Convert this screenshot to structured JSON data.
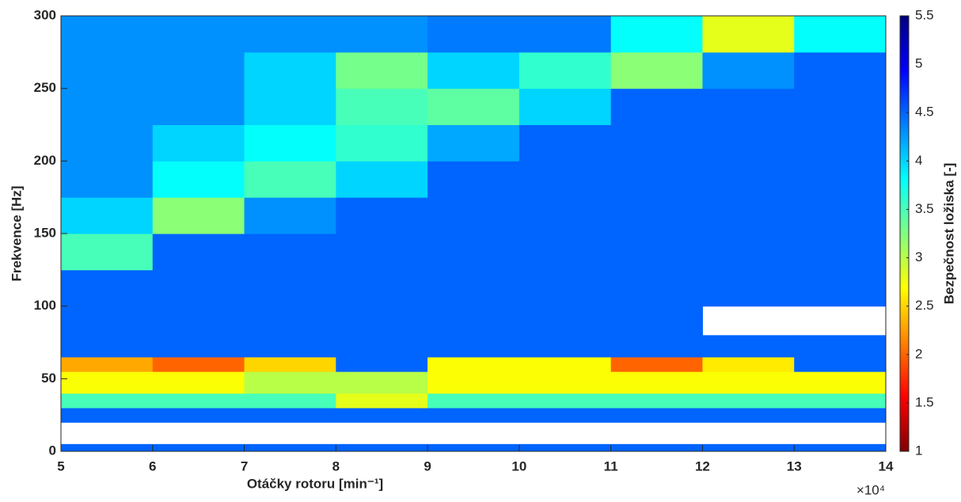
{
  "chart_data": {
    "type": "heatmap",
    "x_label": "Otáčky rotoru [min⁻¹]",
    "y_label": "Frekvence [Hz]",
    "colorbar_label": "Bezpečnost ložiska [-]",
    "x_multiplier_label": "×10⁴",
    "x_edges": [
      5,
      6,
      7,
      8,
      9,
      10,
      11,
      12,
      13,
      14
    ],
    "y_edges": [
      0,
      5,
      20,
      30,
      40,
      55,
      65,
      80,
      100,
      125,
      150,
      175,
      200,
      225,
      250,
      275,
      300
    ],
    "z": [
      [
        4.5,
        4.5,
        4.5,
        4.5,
        4.5,
        4.5,
        4.5,
        4.5,
        4.5
      ],
      [
        null,
        null,
        null,
        null,
        null,
        null,
        null,
        null,
        null
      ],
      [
        4.5,
        4.5,
        4.5,
        4.5,
        4.5,
        4.5,
        4.5,
        4.5,
        4.5
      ],
      [
        3.5,
        3.5,
        3.5,
        2.8,
        3.5,
        3.5,
        3.5,
        3.5,
        3.5
      ],
      [
        2.7,
        2.7,
        3.0,
        3.0,
        2.7,
        2.7,
        2.7,
        2.7,
        2.7
      ],
      [
        2.3,
        2.0,
        2.5,
        4.5,
        2.7,
        2.7,
        2.0,
        2.6,
        4.5
      ],
      [
        4.5,
        4.5,
        4.5,
        4.5,
        4.5,
        4.5,
        4.5,
        4.5,
        4.5
      ],
      [
        4.5,
        4.5,
        4.5,
        4.5,
        4.5,
        4.5,
        4.5,
        null,
        null
      ],
      [
        4.5,
        4.5,
        4.5,
        4.5,
        4.5,
        4.5,
        4.5,
        4.5,
        4.5
      ],
      [
        3.5,
        4.5,
        4.5,
        4.5,
        4.5,
        4.5,
        4.5,
        4.5,
        4.5
      ],
      [
        4.0,
        3.2,
        4.3,
        4.5,
        4.5,
        4.5,
        4.5,
        4.5,
        4.5
      ],
      [
        4.3,
        3.8,
        3.5,
        4.0,
        4.5,
        4.5,
        4.5,
        4.5,
        4.5
      ],
      [
        4.3,
        4.0,
        3.8,
        3.6,
        4.2,
        4.5,
        4.5,
        4.5,
        4.5
      ],
      [
        4.3,
        4.3,
        4.0,
        3.5,
        3.4,
        4.0,
        4.5,
        4.5,
        4.5
      ],
      [
        4.3,
        4.3,
        4.0,
        3.3,
        4.0,
        3.6,
        3.2,
        4.3,
        4.5
      ],
      [
        4.3,
        4.3,
        4.3,
        4.3,
        4.4,
        4.4,
        3.8,
        2.8,
        3.8
      ]
    ],
    "xlim": [
      5,
      14
    ],
    "xticks": [
      5,
      6,
      7,
      8,
      9,
      10,
      11,
      12,
      13,
      14
    ],
    "ylim": [
      0,
      300
    ],
    "yticks": [
      0,
      50,
      100,
      150,
      200,
      250,
      300
    ],
    "clim": [
      1,
      5.5
    ],
    "cticks": [
      1,
      1.5,
      2,
      2.5,
      3,
      3.5,
      4,
      4.5,
      5,
      5.5
    ],
    "colormap": [
      "#800000",
      "#ff0000",
      "#ff8000",
      "#ffff00",
      "#80ff80",
      "#00ffff",
      "#0080ff",
      "#0000ff",
      "#000080"
    ]
  }
}
